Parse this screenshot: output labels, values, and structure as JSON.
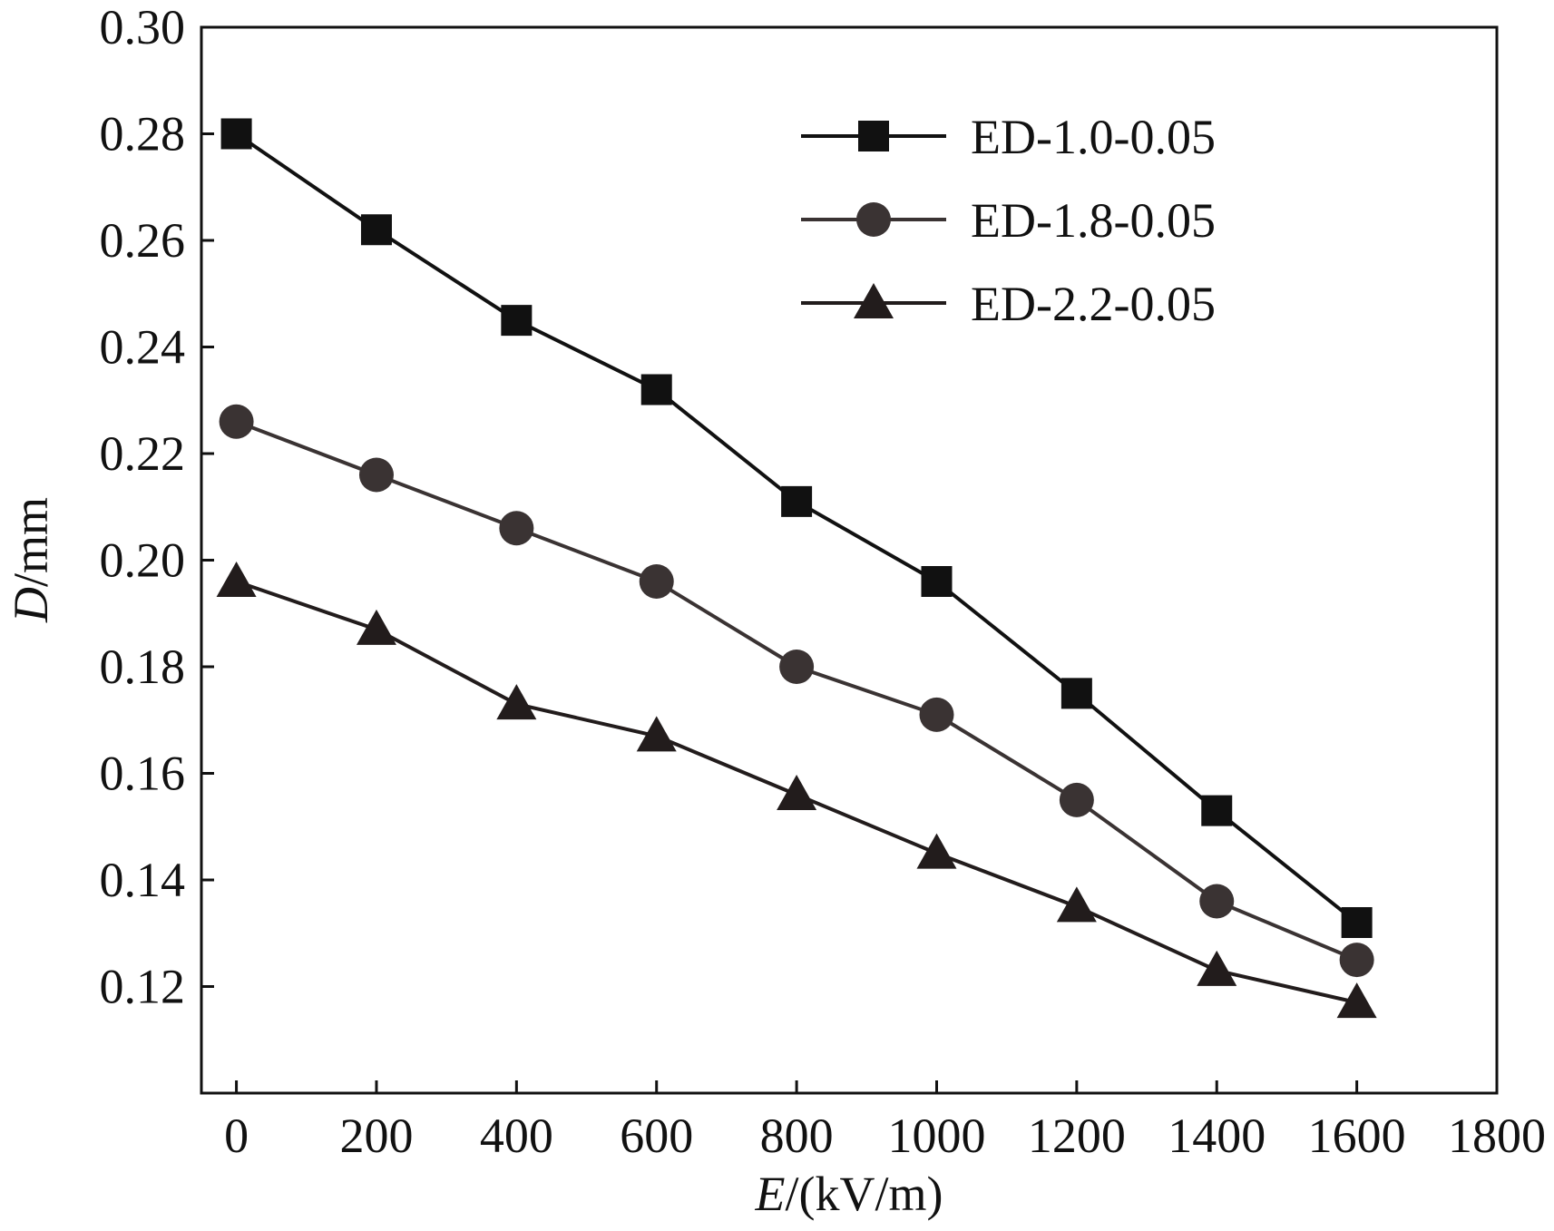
{
  "chart_data": {
    "type": "line",
    "title": "",
    "x": [
      0,
      200,
      400,
      600,
      800,
      1000,
      1200,
      1400,
      1600
    ],
    "series": [
      {
        "name": "ED-1.0-0.05",
        "marker": "square",
        "color": "#111111",
        "values": [
          0.28,
          0.262,
          0.245,
          0.232,
          0.211,
          0.196,
          0.175,
          0.153,
          0.132
        ]
      },
      {
        "name": "ED-1.8-0.05",
        "marker": "circle",
        "color": "#3a3333",
        "values": [
          0.226,
          0.216,
          0.206,
          0.196,
          0.18,
          0.171,
          0.155,
          0.136,
          0.125
        ]
      },
      {
        "name": "ED-2.2-0.05",
        "marker": "triangle",
        "color": "#221c1c",
        "values": [
          0.196,
          0.187,
          0.173,
          0.167,
          0.156,
          0.145,
          0.135,
          0.123,
          0.117
        ]
      }
    ],
    "xlabel": {
      "var": "E",
      "unit": "/(kV/m)"
    },
    "ylabel": {
      "var": "D",
      "unit": "/mm"
    },
    "xlim": [
      -50,
      1800
    ],
    "ylim": [
      0.1,
      0.3
    ],
    "xticks": [
      "0",
      "200",
      "400",
      "600",
      "800",
      "1000",
      "1200",
      "1400",
      "1600",
      "1800"
    ],
    "yticks": [
      "0.12",
      "0.14",
      "0.16",
      "0.18",
      "0.20",
      "0.22",
      "0.24",
      "0.26",
      "0.28",
      "0.30"
    ],
    "grid": false,
    "legend_position": "top-right"
  }
}
